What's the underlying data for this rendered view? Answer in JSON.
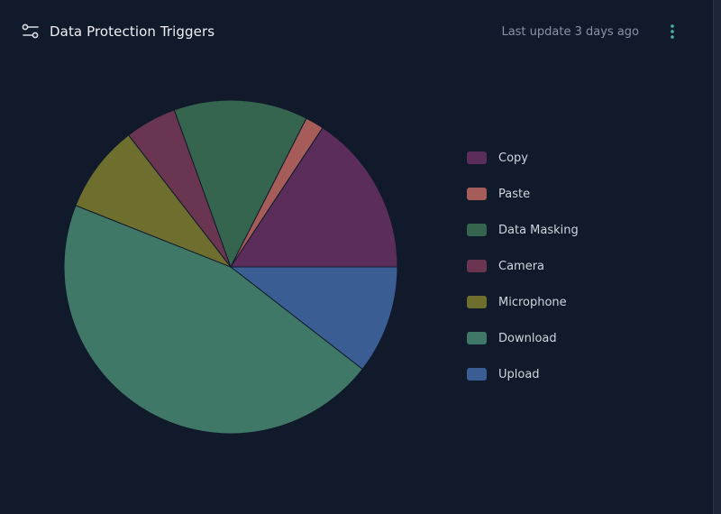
{
  "header": {
    "title": "Data Protection Triggers",
    "last_update": "Last update 3 days ago",
    "title_icon": "sliders-icon",
    "menu_icon": "more-vertical-icon"
  },
  "chart_data": {
    "type": "pie",
    "title": "Data Protection Triggers",
    "legend_position": "right",
    "start_angle_deg": 0,
    "slices": [
      {
        "label": "Upload",
        "value": 10.5,
        "color": "#3a5e94"
      },
      {
        "label": "Download",
        "value": 45.5,
        "color": "#3f7866"
      },
      {
        "label": "Microphone",
        "value": 8.5,
        "color": "#6e6e2e"
      },
      {
        "label": "Camera",
        "value": 5.0,
        "color": "#6a3551"
      },
      {
        "label": "Data Masking",
        "value": 13.0,
        "color": "#35644f"
      },
      {
        "label": "Paste",
        "value": 1.8,
        "color": "#a65c58"
      },
      {
        "label": "Copy",
        "value": 15.7,
        "color": "#5a2d5a"
      }
    ],
    "legend": [
      {
        "label": "Copy",
        "color": "#5a2d5a"
      },
      {
        "label": "Paste",
        "color": "#a65c58"
      },
      {
        "label": "Data Masking",
        "color": "#35644f"
      },
      {
        "label": "Camera",
        "color": "#6a3551"
      },
      {
        "label": "Microphone",
        "color": "#6e6e2e"
      },
      {
        "label": "Download",
        "color": "#3f7866"
      },
      {
        "label": "Upload",
        "color": "#3a5e94"
      }
    ]
  }
}
